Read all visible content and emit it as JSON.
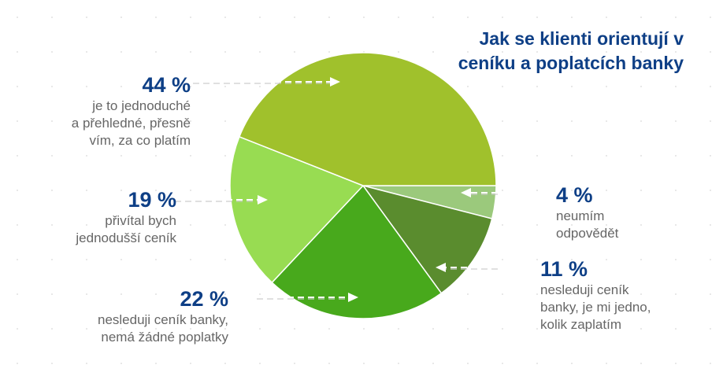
{
  "chart_data": {
    "type": "pie",
    "title": "Jak se klienti orientují v ceníku a poplatcích banky",
    "slices": [
      {
        "label": "neumím odpovědět",
        "value": 4,
        "pct_label": "4 %",
        "desc": "neumím\nodpovědět",
        "color": "#9bc97c"
      },
      {
        "label": "nesleduji ceník banky, je mi jedno, kolik zaplatím",
        "value": 11,
        "pct_label": "11 %",
        "desc": "nesleduji ceník\nbanky, je mi jedno,\nkolik zaplatím",
        "color": "#5a8c2e"
      },
      {
        "label": "nesleduji ceník banky, nemá žádné poplatky",
        "value": 22,
        "pct_label": "22 %",
        "desc": "nesleduji ceník banky,\nnemá žádné poplatky",
        "color": "#48a91c"
      },
      {
        "label": "přivítal bych jednodušší ceník",
        "value": 19,
        "pct_label": "19 %",
        "desc": "přivítal bych\njednodušší ceník",
        "color": "#98dc52"
      },
      {
        "label": "je to jednoduché a přehledné, přesně vím, za co platím",
        "value": 44,
        "pct_label": "44 %",
        "desc": "je to jednoduché\na přehledné, přesně\nvím, za co platím",
        "color": "#a0c12c"
      }
    ],
    "start": "3 o'clock, clockwise"
  }
}
